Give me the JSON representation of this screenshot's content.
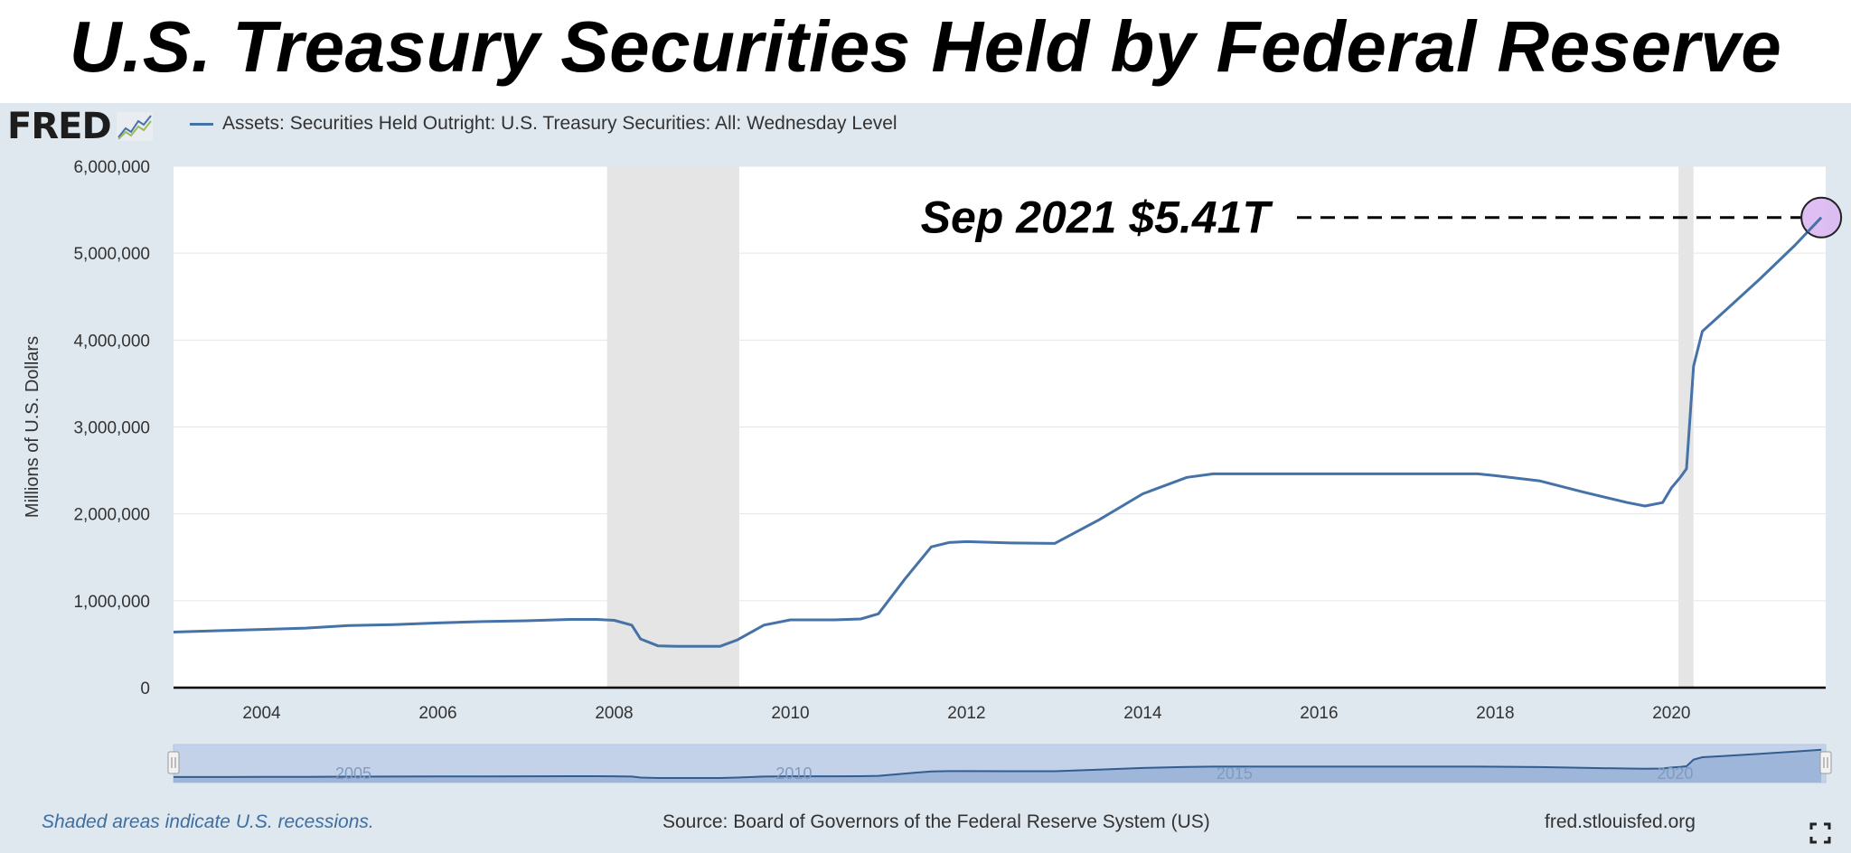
{
  "title": "U.S. Treasury Securities Held by Federal Reserve",
  "fred_logo_text": "FRED",
  "legend": {
    "series_name": "Assets: Securities Held Outright: U.S. Treasury Securities: All: Wednesday Level"
  },
  "footer": {
    "recession_note": "Shaded areas indicate U.S. recessions.",
    "source": "Source: Board of Governors of the Federal Reserve System (US)",
    "site": "fred.stlouisfed.org"
  },
  "colors": {
    "line": "#4572a7",
    "recession": "#e5e5e5",
    "panel": "#dfe7ef",
    "navigator": "#c3d2e8",
    "highlight": "#dcb8f2"
  },
  "annotation": {
    "text": "Sep 2021 $5.41T",
    "x": 2021.7,
    "y": 5410000
  },
  "navigator": {
    "labels": [
      "2005",
      "2010",
      "2015",
      "2020"
    ]
  },
  "chart_data": {
    "type": "line",
    "ylabel": "Millions of U.S. Dollars",
    "ylim": [
      0,
      6000000
    ],
    "xlim": [
      2003.0,
      2021.75
    ],
    "yticks": [
      0,
      1000000,
      2000000,
      3000000,
      4000000,
      5000000,
      6000000
    ],
    "ytick_labels": [
      "0",
      "1,000,000",
      "2,000,000",
      "3,000,000",
      "4,000,000",
      "5,000,000",
      "6,000,000"
    ],
    "xticks": [
      2004,
      2006,
      2008,
      2010,
      2012,
      2014,
      2016,
      2018,
      2020
    ],
    "xtick_labels": [
      "2004",
      "2006",
      "2008",
      "2010",
      "2012",
      "2014",
      "2016",
      "2018",
      "2020"
    ],
    "grid": true,
    "recessions": [
      [
        2007.92,
        2009.42
      ],
      [
        2020.08,
        2020.25
      ]
    ],
    "series": [
      {
        "name": "Assets: Securities Held Outright: U.S. Treasury Securities: All: Wednesday Level",
        "x": [
          2003.0,
          2003.5,
          2004.0,
          2004.5,
          2005.0,
          2005.5,
          2006.0,
          2006.5,
          2007.0,
          2007.5,
          2007.8,
          2008.0,
          2008.2,
          2008.3,
          2008.5,
          2008.7,
          2009.0,
          2009.2,
          2009.4,
          2009.7,
          2010.0,
          2010.5,
          2010.8,
          2011.0,
          2011.3,
          2011.6,
          2011.8,
          2012.0,
          2012.5,
          2013.0,
          2013.5,
          2014.0,
          2014.5,
          2014.8,
          2015.0,
          2015.5,
          2016.0,
          2016.5,
          2017.0,
          2017.5,
          2017.8,
          2018.0,
          2018.5,
          2019.0,
          2019.5,
          2019.7,
          2019.9,
          2020.0,
          2020.1,
          2020.17,
          2020.25,
          2020.35,
          2020.6,
          2021.0,
          2021.4,
          2021.7
        ],
        "y": [
          640000,
          655000,
          670000,
          685000,
          715000,
          725000,
          745000,
          760000,
          770000,
          785000,
          785000,
          775000,
          720000,
          560000,
          480000,
          475000,
          475000,
          475000,
          550000,
          720000,
          780000,
          780000,
          790000,
          850000,
          1250000,
          1620000,
          1670000,
          1680000,
          1665000,
          1660000,
          1930000,
          2230000,
          2420000,
          2460000,
          2460000,
          2460000,
          2460000,
          2460000,
          2460000,
          2460000,
          2460000,
          2440000,
          2380000,
          2250000,
          2130000,
          2090000,
          2130000,
          2300000,
          2420000,
          2520000,
          3700000,
          4100000,
          4330000,
          4700000,
          5090000,
          5410000
        ]
      }
    ],
    "navigator_y": [
      640000,
      655000,
      670000,
      685000,
      715000,
      725000,
      745000,
      760000,
      770000,
      785000,
      785000,
      775000,
      720000,
      560000,
      480000,
      475000,
      475000,
      475000,
      550000,
      720000,
      780000,
      780000,
      790000,
      850000,
      1250000,
      1620000,
      1670000,
      1680000,
      1665000,
      1660000,
      1930000,
      2230000,
      2420000,
      2460000,
      2460000,
      2460000,
      2460000,
      2460000,
      2460000,
      2460000,
      2460000,
      2440000,
      2380000,
      2250000,
      2130000,
      2090000,
      2130000,
      2300000,
      2420000,
      2520000,
      3700000,
      4100000,
      4330000,
      4700000,
      5090000,
      5410000
    ]
  }
}
